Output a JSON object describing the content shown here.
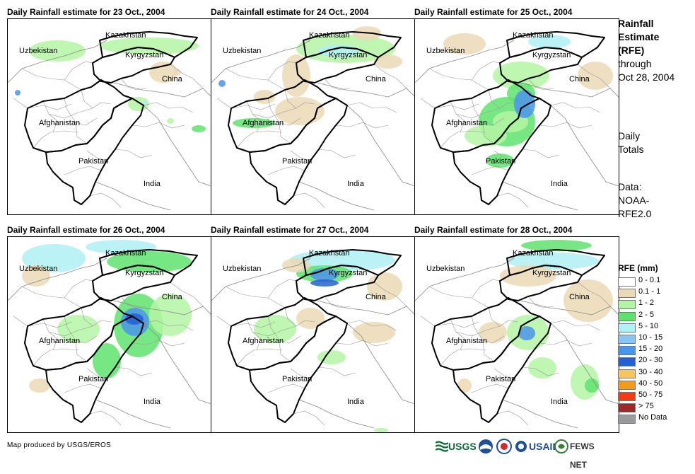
{
  "panels": [
    {
      "title": "Daily Rainfall estimate for 23 Oct., 2004"
    },
    {
      "title": "Daily Rainfall estimate for 24 Oct., 2004"
    },
    {
      "title": "Daily Rainfall estimate for 25 Oct., 2004"
    },
    {
      "title": "Daily Rainfall estimate for 26 Oct., 2004"
    },
    {
      "title": "Daily Rainfall estimate for 27 Oct., 2004"
    },
    {
      "title": "Daily Rainfall estimate for 28 Oct., 2004"
    }
  ],
  "map_labels": {
    "kazakhstan": "Kazakhstan",
    "uzbekistan": "Uzbekistan",
    "kyrgyzstan": "Kyrgyzstan",
    "china": "China",
    "afghanistan": "Afghanistan",
    "pakistan": "Pakistan",
    "india": "India"
  },
  "side_panel": {
    "title_line1": "Rainfall",
    "title_line2": "Estimate",
    "title_line3": "(RFE)",
    "through": "through",
    "date": "Oct 28, 2004",
    "daily1": "Daily",
    "daily2": "Totals",
    "data1": "Data:",
    "data2": "NOAA-",
    "data3": "RFE2.0"
  },
  "legend": {
    "title": "RFE (mm)",
    "items": [
      {
        "label": "0 - 0.1",
        "color": "#ffffff"
      },
      {
        "label": "0.1 - 1",
        "color": "#ead9b4"
      },
      {
        "label": "1 - 2",
        "color": "#b4f5a3"
      },
      {
        "label": "2 - 5",
        "color": "#5fe36e"
      },
      {
        "label": "5 - 10",
        "color": "#aef0f5"
      },
      {
        "label": "10 - 15",
        "color": "#8ac4f2"
      },
      {
        "label": "15 - 20",
        "color": "#4b94eb"
      },
      {
        "label": "20 - 30",
        "color": "#2560d3"
      },
      {
        "label": "30 - 40",
        "color": "#fbc35a"
      },
      {
        "label": "40 - 50",
        "color": "#f79a19"
      },
      {
        "label": "50 - 75",
        "color": "#f23b10"
      },
      {
        "label": "> 75",
        "color": "#a0262a"
      },
      {
        "label": "No Data",
        "color": "#9a9a9a"
      }
    ]
  },
  "footer": "Map produced by USGS/EROS",
  "logos": {
    "usgs": "USGS",
    "usaid": "USAID",
    "fewsnet": "FEWS NET"
  }
}
